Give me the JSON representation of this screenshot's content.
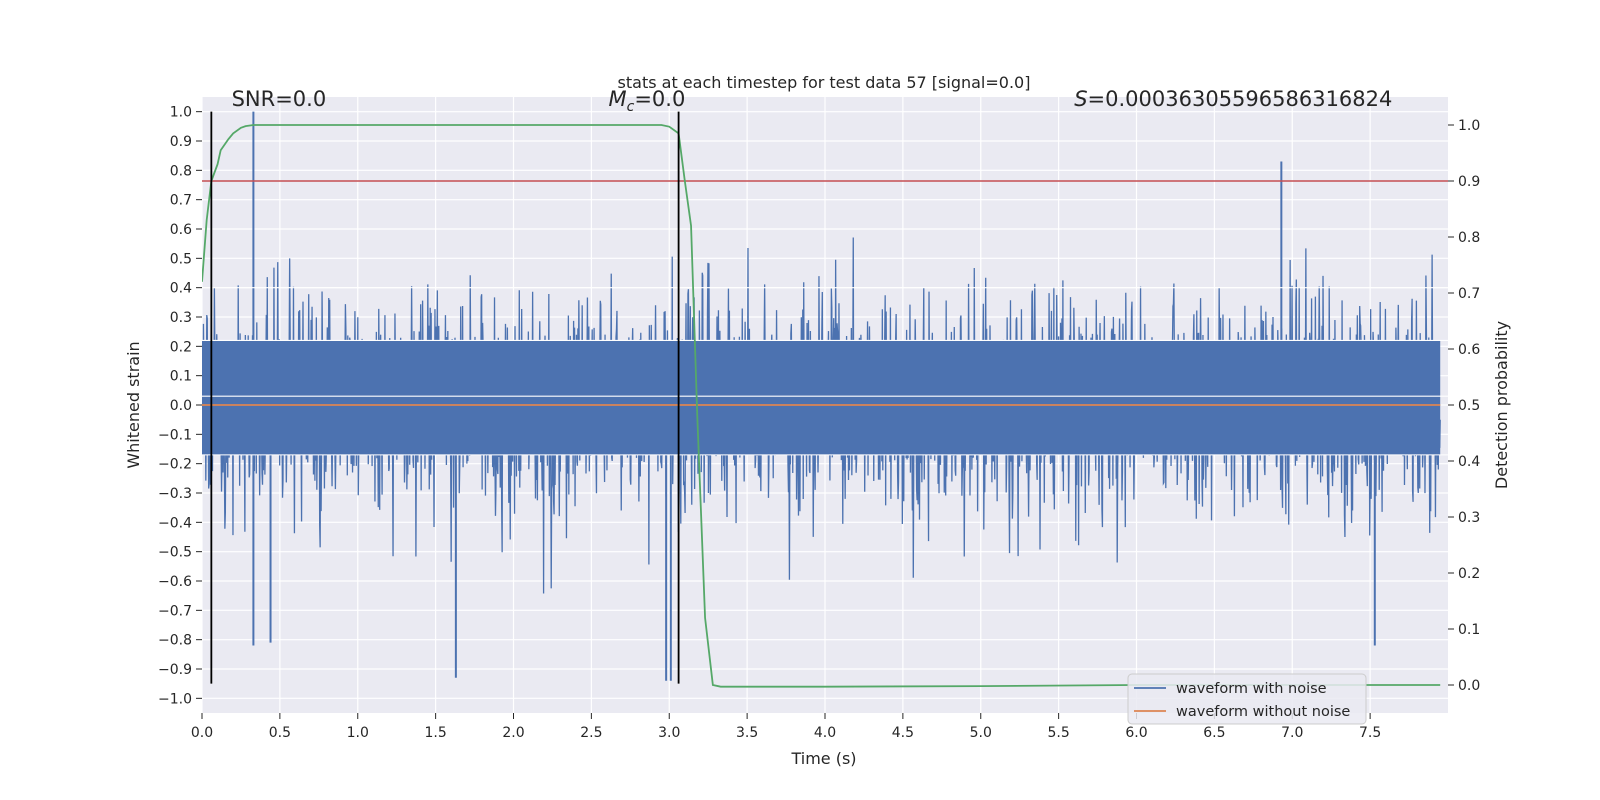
{
  "chart_data": {
    "type": "line",
    "title": "stats at each timestep for test data 57 [signal=0.0]",
    "xlabel": "Time (s)",
    "ylabel": "Whitened strain",
    "y2label": "Detection probability",
    "xlim": [
      0.0,
      8.0
    ],
    "ylim": [
      -1.05,
      1.05
    ],
    "y2lim": [
      -0.05,
      1.05
    ],
    "xticks": [
      0.0,
      0.5,
      1.0,
      1.5,
      2.0,
      2.5,
      3.0,
      3.5,
      4.0,
      4.5,
      5.0,
      5.5,
      6.0,
      6.5,
      7.0,
      7.5
    ],
    "xtick_labels": [
      "0.0",
      "0.5",
      "1.0",
      "1.5",
      "2.0",
      "2.5",
      "3.0",
      "3.5",
      "4.0",
      "4.5",
      "5.0",
      "5.5",
      "6.0",
      "6.5",
      "7.0",
      "7.5"
    ],
    "yticks": [
      1.0,
      0.9,
      0.8,
      0.7,
      0.6,
      0.5,
      0.4,
      0.3,
      0.2,
      0.1,
      0.0,
      -0.1,
      -0.2,
      -0.3,
      -0.4,
      -0.5,
      -0.6,
      -0.7,
      -0.8,
      -0.9,
      -1.0
    ],
    "ytick_labels": [
      "1.0",
      "0.9",
      "0.8",
      "0.7",
      "0.6",
      "0.5",
      "0.4",
      "0.3",
      "0.2",
      "0.1",
      "0.0",
      "−0.1",
      "−0.2",
      "−0.3",
      "−0.4",
      "−0.5",
      "−0.6",
      "−0.7",
      "−0.8",
      "−0.9",
      "−1.0"
    ],
    "y2ticks": [
      1.0,
      0.9,
      0.8,
      0.7,
      0.6,
      0.5,
      0.4,
      0.3,
      0.2,
      0.1,
      0.0
    ],
    "y2tick_labels": [
      "1.0",
      "0.9",
      "0.8",
      "0.7",
      "0.6",
      "0.5",
      "0.4",
      "0.3",
      "0.2",
      "0.1",
      "0.0"
    ],
    "grid": true,
    "annotations": [
      {
        "id": "snr",
        "text": "SNR=0.0",
        "x": 0.19,
        "y": 1.02
      },
      {
        "id": "mc",
        "text_symbol": "M",
        "text_sub": "c",
        "text_rest": "=0.0",
        "x": 2.61,
        "y": 1.02
      },
      {
        "id": "s",
        "text_symbol": "S",
        "text_rest": "=0.00036305596586316824",
        "x": 5.6,
        "y": 1.02
      }
    ],
    "vlines": [
      {
        "x": 0.06,
        "ymin": -0.95,
        "ymax": 1.0,
        "color": "#000000"
      },
      {
        "x": 3.06,
        "ymin": -0.95,
        "ymax": 1.0,
        "color": "#000000"
      }
    ],
    "threshold_line": {
      "y2": 0.9,
      "color": "#c44e52"
    },
    "series": [
      {
        "name": "waveform with noise",
        "color": "#4c72b0",
        "axis": "left",
        "kind": "noise",
        "band_low": -0.17,
        "band_high": 0.22,
        "spikes": [
          {
            "x": 0.33,
            "y": 1.0
          },
          {
            "x": 0.33,
            "y": -0.82
          },
          {
            "x": 0.44,
            "y": -0.81
          },
          {
            "x": 1.63,
            "y": -0.93
          },
          {
            "x": 2.98,
            "y": -0.94
          },
          {
            "x": 3.01,
            "y": -0.94
          },
          {
            "x": 6.93,
            "y": 0.83
          },
          {
            "x": 7.53,
            "y": -0.82
          }
        ]
      },
      {
        "name": "waveform without noise",
        "color": "#dd8452",
        "axis": "left",
        "x": [
          0.0,
          7.95
        ],
        "y": [
          0.0,
          0.0
        ]
      },
      {
        "name": "Detection probability",
        "color": "#55a868",
        "axis": "right",
        "legend": false,
        "x": [
          0.0,
          0.03,
          0.06,
          0.1,
          0.12,
          0.17,
          0.2,
          0.25,
          0.28,
          0.33,
          0.5,
          1.0,
          2.0,
          2.95,
          3.0,
          3.06,
          3.1,
          3.14,
          3.18,
          3.23,
          3.28,
          3.33,
          3.5,
          4.0,
          5.0,
          6.0,
          7.0,
          7.95
        ],
        "y": [
          0.72,
          0.83,
          0.9,
          0.93,
          0.955,
          0.975,
          0.985,
          0.995,
          0.998,
          1.0,
          1.0,
          1.0,
          1.0,
          1.0,
          0.997,
          0.985,
          0.9,
          0.82,
          0.48,
          0.12,
          0.0,
          -0.003,
          -0.003,
          -0.003,
          -0.002,
          0.0,
          0.0,
          0.0
        ]
      }
    ],
    "legend_position": "bottom-right",
    "legend_entries": [
      "waveform with noise",
      "waveform without noise"
    ]
  }
}
